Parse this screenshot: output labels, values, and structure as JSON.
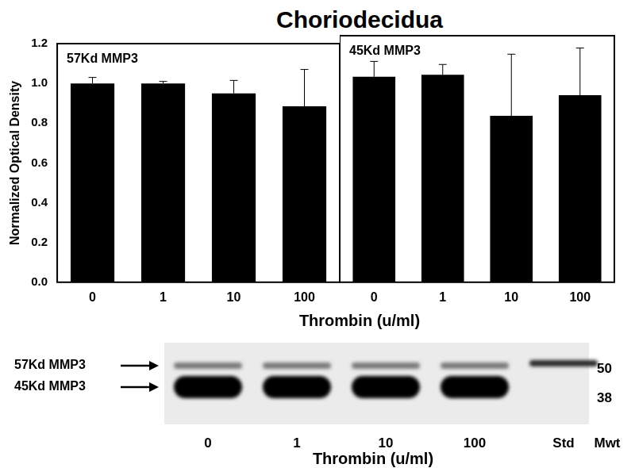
{
  "figure": {
    "title": "Choriodecidua",
    "y_label": "Normalized Optical Density",
    "x_label": "Thrombin (u/ml)"
  },
  "chart_data": [
    {
      "type": "bar",
      "annotation": "57Kd MMP3",
      "categories": [
        "0",
        "1",
        "10",
        "100"
      ],
      "values": [
        1.0,
        1.0,
        0.95,
        0.885
      ],
      "errors": [
        0.03,
        0.01,
        0.065,
        0.185
      ],
      "color": "#000000",
      "ylim": [
        0,
        1.2
      ],
      "yticks": [
        {
          "value": 0,
          "label": "0.0"
        },
        0.2,
        0.4,
        0.6,
        0.8,
        {
          "value": 1,
          "label": "1.0"
        },
        1.2
      ],
      "grid": false
    },
    {
      "type": "bar",
      "annotation": "45Kd MMP3",
      "categories": [
        "0",
        "1",
        "10",
        "100"
      ],
      "values": [
        1.0,
        1.01,
        0.81,
        0.91
      ],
      "errors": [
        0.075,
        0.05,
        0.3,
        0.23
      ],
      "color": "#000000",
      "ylim": [
        0,
        1.2
      ],
      "yticks": [
        {
          "value": 0,
          "label": "0.0"
        },
        0.2,
        0.4,
        0.6,
        0.8,
        {
          "value": 1,
          "label": "1.0"
        },
        1.2
      ],
      "grid": false,
      "tick_labels": "x"
    }
  ],
  "blot": {
    "band_labels": [
      "57Kd MMP3",
      "45Kd MMP3"
    ],
    "lanes": [
      {
        "label": "0",
        "bands": [
          "57Kd MMP3",
          "45Kd MMP3"
        ]
      },
      {
        "label": "1",
        "bands": [
          "57Kd MMP3",
          "45Kd MMP3"
        ]
      },
      {
        "label": "10",
        "bands": [
          "57Kd MMP3",
          "45Kd MMP3"
        ]
      },
      {
        "label": "100",
        "bands": [
          "57Kd MMP3",
          "45Kd MMP3"
        ]
      },
      {
        "label": "Std",
        "bands": [
          "57Kd MMP3"
        ]
      }
    ],
    "x_label": "Thrombin (u/ml)",
    "mw_markers": [
      50,
      38
    ],
    "mw_label": "Mwt"
  }
}
